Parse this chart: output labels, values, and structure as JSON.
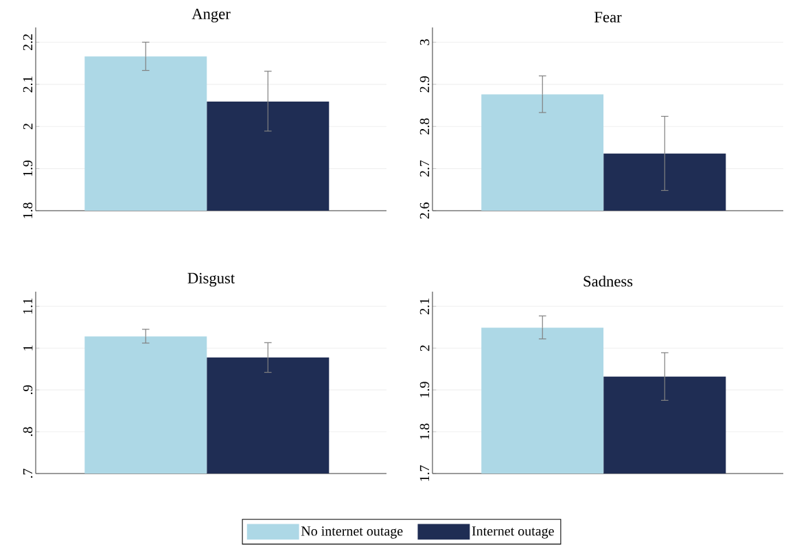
{
  "chart_data": [
    {
      "type": "bar",
      "title": "Anger",
      "categories": [
        null
      ],
      "ylim": [
        1.8,
        2.235
      ],
      "yticks": [
        1.8,
        1.9,
        2,
        2.1,
        2.2
      ],
      "grid": "y",
      "series": [
        {
          "color": "#add8e6",
          "values": [
            2.166
          ],
          "errors": [
            [
              2.133,
              2.2
            ]
          ]
        },
        {
          "color": "#1f2d54",
          "values": [
            2.059
          ],
          "errors": [
            [
              1.989,
              2.131
            ]
          ]
        }
      ]
    },
    {
      "type": "bar",
      "title": "Fear",
      "categories": [
        null
      ],
      "ylim": [
        2.6,
        3.035
      ],
      "yticks": [
        2.6,
        2.7,
        2.8,
        2.9,
        3
      ],
      "grid": "y",
      "series": [
        {
          "color": "#add8e6",
          "values": [
            2.876
          ],
          "errors": [
            [
              2.833,
              2.92
            ]
          ]
        },
        {
          "color": "#1f2d54",
          "values": [
            2.736
          ],
          "errors": [
            [
              2.648,
              2.824
            ]
          ]
        }
      ]
    },
    {
      "type": "bar",
      "title": "Disgust",
      "categories": [
        null
      ],
      "ylim": [
        0.7,
        1.135
      ],
      "yticks": [
        {
          "value": 0.7,
          "label": ".7"
        },
        {
          "value": 0.8,
          "label": ".8"
        },
        {
          "value": 0.9,
          "label": ".9"
        },
        1,
        1.1
      ],
      "grid": "y",
      "legend": "bottom",
      "series": [
        {
          "name": "No internet outage",
          "color": "#add8e6",
          "values": [
            1.028
          ],
          "errors": [
            [
              1.012,
              1.045
            ]
          ]
        },
        {
          "name": "Internet outage",
          "color": "#1f2d54",
          "values": [
            0.978
          ],
          "errors": [
            [
              0.942,
              1.013
            ]
          ]
        }
      ]
    },
    {
      "type": "bar",
      "title": "Sadness",
      "categories": [
        null
      ],
      "ylim": [
        1.7,
        2.135
      ],
      "yticks": [
        1.7,
        1.8,
        1.9,
        2,
        2.1
      ],
      "grid": "y",
      "series": [
        {
          "color": "#add8e6",
          "values": [
            2.049
          ],
          "errors": [
            [
              2.022,
              2.077
            ]
          ]
        },
        {
          "color": "#1f2d54",
          "values": [
            1.932
          ],
          "errors": [
            [
              1.875,
              1.989
            ]
          ]
        }
      ]
    }
  ]
}
